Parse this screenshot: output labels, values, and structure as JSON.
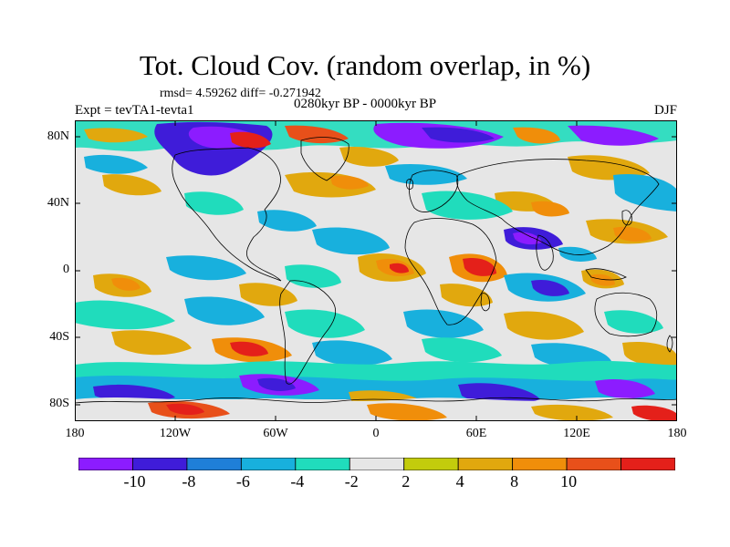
{
  "title": "Tot. Cloud Cov. (random overlap, in %)",
  "stats": "rmsd= 4.59262 diff= -0.271942",
  "experiment": "Expt = tevTA1-tevta1",
  "period": "0280kyr BP - 0000kyr BP",
  "season": "DJF",
  "lat_labels": [
    "80N",
    "40N",
    "0",
    "40S",
    "80S"
  ],
  "lon_labels": [
    "180",
    "120W",
    "60W",
    "0",
    "60E",
    "120E",
    "180"
  ],
  "colorbar": {
    "colors": [
      "#8c1cff",
      "#3f1cd9",
      "#1f7fd8",
      "#18b0dd",
      "#20dcbc",
      "#e6e6e6",
      "#c3cc0c",
      "#e1a80e",
      "#f08e0a",
      "#e8501a",
      "#e4201a"
    ],
    "labels": [
      "-10",
      "-8",
      "-6",
      "-4",
      "-2",
      "2",
      "4",
      "8",
      "10"
    ]
  }
}
